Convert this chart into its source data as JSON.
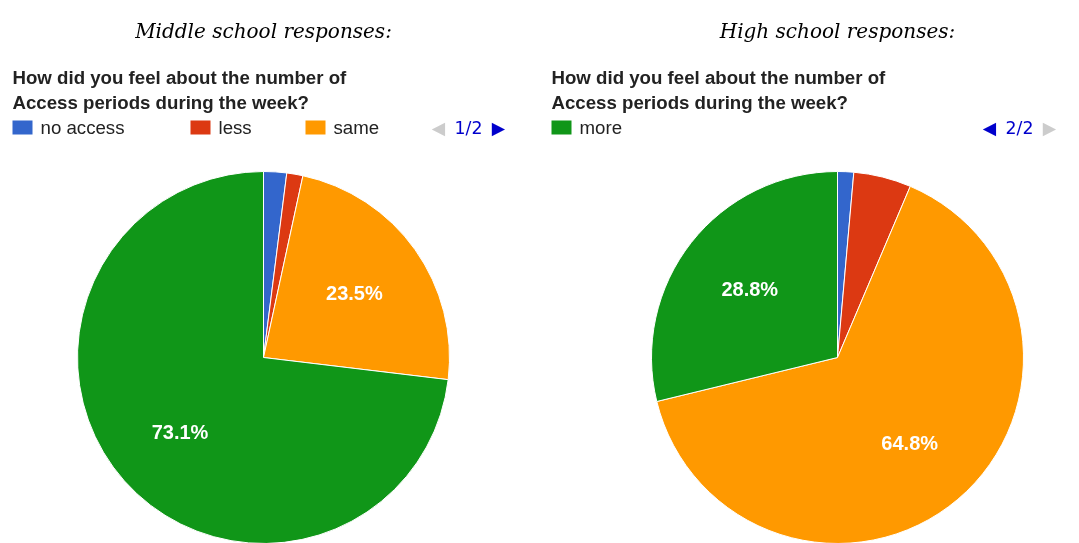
{
  "chart_data": [
    {
      "type": "pie",
      "title": "Middle school responses:",
      "subtitle": "How did you feel about the number of Access periods during the week?",
      "categories": [
        "no access",
        "less",
        "same",
        null
      ],
      "values": [
        2.0,
        1.4,
        23.5,
        73.1
      ],
      "colors": [
        "#3366cc",
        "#dc3912",
        "#ff9900",
        "#109618"
      ],
      "value_labels": [
        null,
        null,
        "23.5%",
        "73.1%"
      ],
      "legend": "top",
      "annotations": [
        "◀ 1/2 ▶"
      ]
    },
    {
      "type": "pie",
      "title": "High school responses:",
      "subtitle": "How did you feel about the number of Access periods during the week?",
      "categories": [
        null,
        null,
        null,
        "more"
      ],
      "values": [
        1.4,
        5.0,
        64.8,
        28.8
      ],
      "colors": [
        "#3366cc",
        "#dc3912",
        "#ff9900",
        "#109618"
      ],
      "value_labels": [
        null,
        null,
        "64.8%",
        "28.8%"
      ],
      "legend": "top",
      "annotations": [
        "◀ 2/2 ▶"
      ]
    }
  ]
}
